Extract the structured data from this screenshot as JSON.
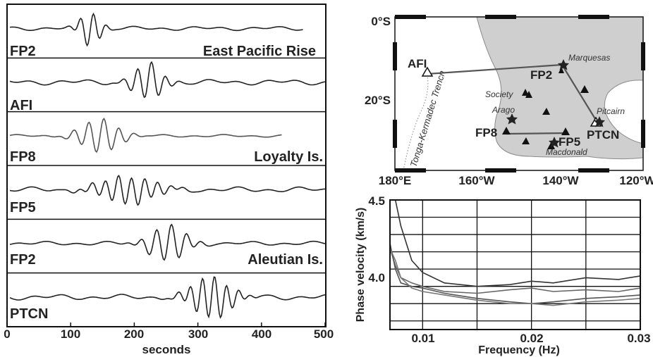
{
  "seismograms": {
    "traces": [
      {
        "station": "FP2",
        "event": "East Pacific Rise"
      },
      {
        "station": "AFI",
        "event": ""
      },
      {
        "station": "FP8",
        "event": "Loyalty Is."
      },
      {
        "station": "FP5",
        "event": ""
      },
      {
        "station": "FP2",
        "event": "Aleutian Is."
      },
      {
        "station": "PTCN",
        "event": ""
      }
    ],
    "x_ticks": [
      "0",
      "100",
      "200",
      "300",
      "400",
      "500"
    ],
    "xlabel": "seconds"
  },
  "map": {
    "lat_ticks": [
      "0°S",
      "20°S"
    ],
    "lon_ticks": [
      "180°E",
      "160°W",
      "140°W",
      "120°W"
    ],
    "stations": [
      "AFI",
      "FP2",
      "FP8",
      "FP5",
      "PTCN"
    ],
    "hotspots": [
      "Marquesas",
      "Society",
      "Arago",
      "Pitcairn",
      "Macdonald"
    ],
    "trench_label": "Tonga-Kermadec Trench"
  },
  "chart_data": {
    "type": "line",
    "xlabel": "Frequency (Hz)",
    "ylabel": "Phase velocity (km/s)",
    "xlim": [
      0.007,
      0.03
    ],
    "ylim": [
      3.75,
      4.5
    ],
    "x_ticks": [
      "0.01",
      "0.02",
      "0.03"
    ],
    "y_ticks": [
      "4.5",
      "4.0"
    ],
    "grid": true,
    "series": [
      {
        "x": [
          0.0075,
          0.008,
          0.009,
          0.01,
          0.012,
          0.015,
          0.018,
          0.02,
          0.022,
          0.025,
          0.028,
          0.03
        ],
        "y": [
          4.5,
          4.35,
          4.15,
          4.08,
          4.02,
          4.0,
          4.01,
          4.03,
          4.02,
          4.05,
          4.04,
          4.06
        ]
      },
      {
        "x": [
          0.007,
          0.0075,
          0.008,
          0.009,
          0.01,
          0.012,
          0.015,
          0.018,
          0.02,
          0.022,
          0.025,
          0.028,
          0.03
        ],
        "y": [
          4.22,
          4.12,
          4.05,
          4.02,
          4.0,
          3.97,
          3.96,
          3.98,
          3.99,
          3.97,
          3.98,
          3.97,
          3.99
        ]
      },
      {
        "x": [
          0.007,
          0.0075,
          0.008,
          0.009,
          0.01,
          0.012,
          0.015,
          0.018,
          0.02,
          0.022,
          0.025,
          0.028,
          0.03
        ],
        "y": [
          4.25,
          4.1,
          4.02,
          4.0,
          3.99,
          3.96,
          3.93,
          3.91,
          3.9,
          3.91,
          3.93,
          3.94,
          3.95
        ]
      },
      {
        "x": [
          0.007,
          0.0075,
          0.008,
          0.009,
          0.01,
          0.012,
          0.015,
          0.018,
          0.02,
          0.022,
          0.025,
          0.028,
          0.03
        ],
        "y": [
          4.22,
          4.15,
          4.05,
          3.99,
          3.97,
          3.95,
          3.92,
          3.9,
          3.9,
          3.89,
          3.91,
          3.92,
          3.93
        ]
      }
    ]
  }
}
